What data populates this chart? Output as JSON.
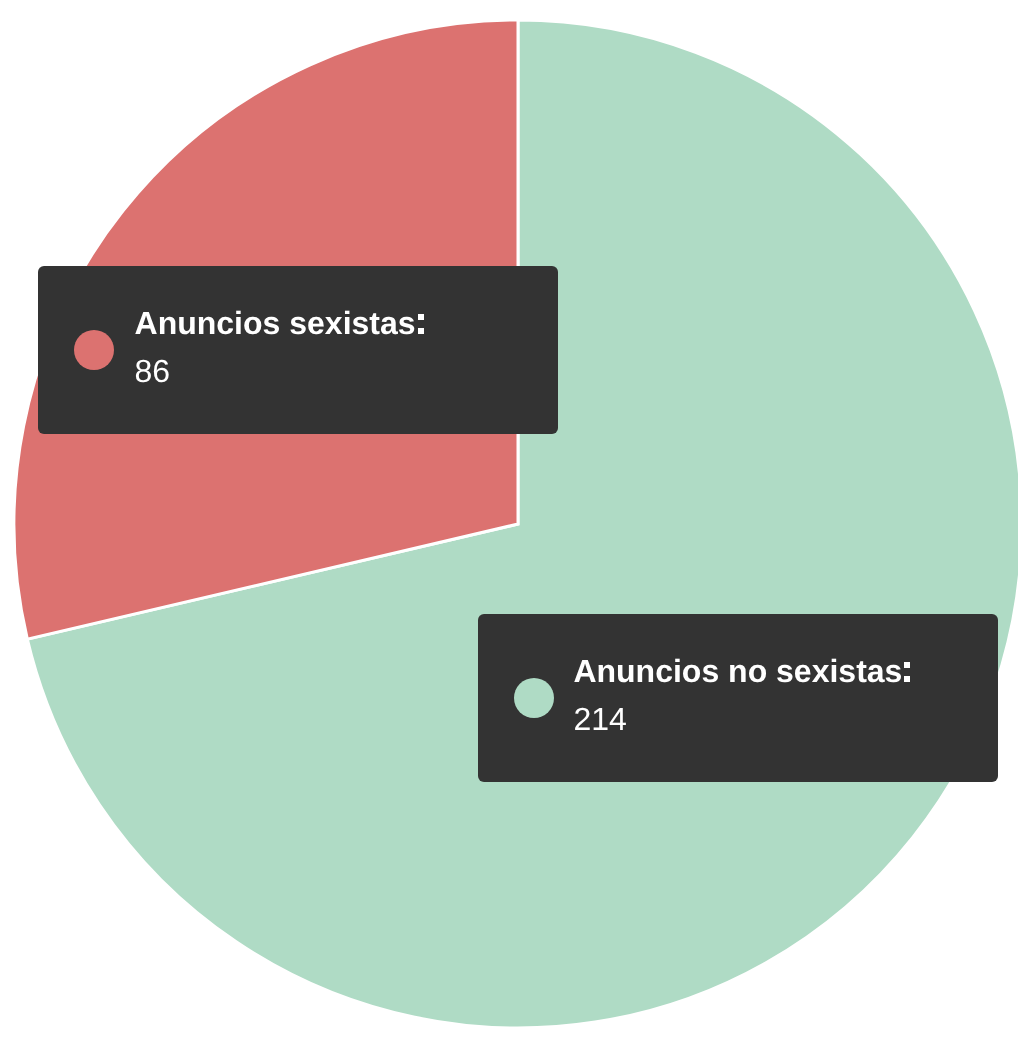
{
  "chart_data": {
    "type": "pie",
    "categories": [
      "Anuncios no sexistas",
      "Anuncios sexistas"
    ],
    "values": [
      214,
      86
    ],
    "colors": [
      "#afdbc5",
      "#dc7270"
    ],
    "data_labels": true
  }
}
